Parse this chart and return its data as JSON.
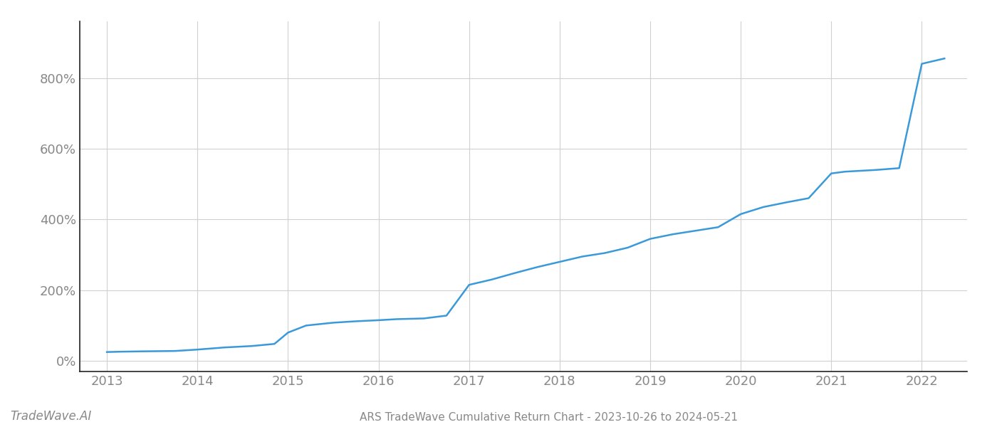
{
  "title": "ARS TradeWave Cumulative Return Chart - 2023-10-26 to 2024-05-21",
  "watermark": "TradeWave.AI",
  "line_color": "#3a9ad9",
  "background_color": "#ffffff",
  "x_values": [
    2013.0,
    2013.15,
    2013.4,
    2013.75,
    2014.0,
    2014.3,
    2014.6,
    2014.85,
    2015.0,
    2015.2,
    2015.5,
    2015.75,
    2016.0,
    2016.2,
    2016.5,
    2016.75,
    2017.0,
    2017.25,
    2017.5,
    2017.75,
    2018.0,
    2018.25,
    2018.5,
    2018.75,
    2019.0,
    2019.25,
    2019.5,
    2019.75,
    2020.0,
    2020.25,
    2020.5,
    2020.75,
    2021.0,
    2021.15,
    2021.5,
    2021.75,
    2022.0,
    2022.25
  ],
  "y_values": [
    25,
    26,
    27,
    28,
    32,
    38,
    42,
    48,
    80,
    100,
    108,
    112,
    115,
    118,
    120,
    128,
    215,
    230,
    248,
    265,
    280,
    295,
    305,
    320,
    345,
    358,
    368,
    378,
    415,
    435,
    448,
    460,
    530,
    535,
    540,
    545,
    840,
    855
  ],
  "xlim": [
    2012.7,
    2022.5
  ],
  "ylim": [
    -30,
    960
  ],
  "yticks": [
    0,
    200,
    400,
    600,
    800
  ],
  "xticks": [
    2013,
    2014,
    2015,
    2016,
    2017,
    2018,
    2019,
    2020,
    2021,
    2022
  ],
  "grid_color": "#d0d0d0",
  "tick_color": "#888888",
  "spine_color": "#222222",
  "line_width": 1.8,
  "font_family": "DejaVu Sans",
  "title_fontsize": 11,
  "watermark_fontsize": 12,
  "tick_fontsize": 13
}
